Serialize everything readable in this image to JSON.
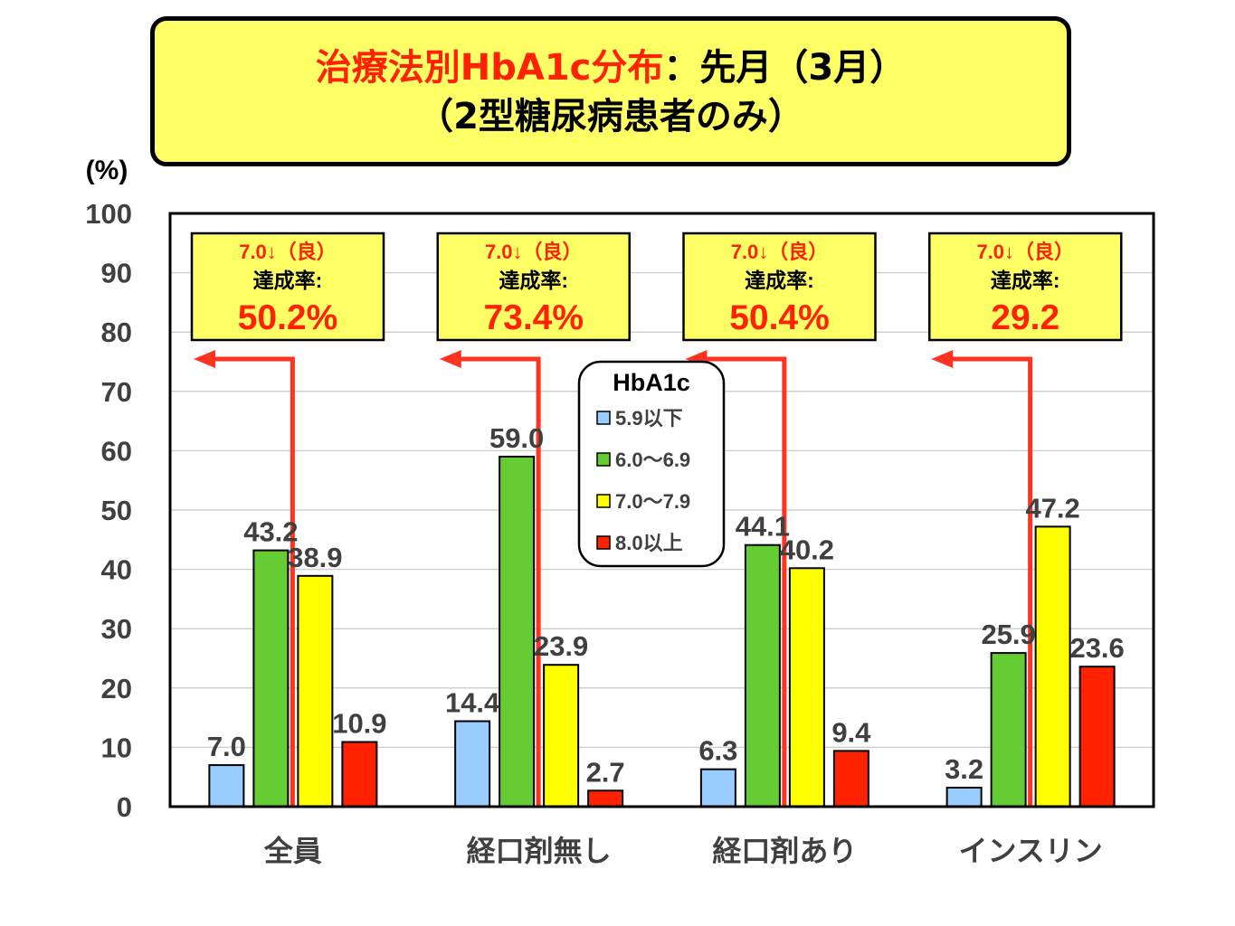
{
  "title": {
    "part1": "治療法別HbA1c分布",
    "part2": "：先月（3月）",
    "line2": "（2型糖尿病患者のみ）"
  },
  "chart_data": {
    "type": "bar",
    "y_unit": "(%)",
    "ylim": [
      0,
      100
    ],
    "yticks": [
      0,
      10,
      20,
      30,
      40,
      50,
      60,
      70,
      80,
      90,
      100
    ],
    "grid": true,
    "categories": [
      "全員",
      "経口剤無し",
      "経口剤あり",
      "インスリン"
    ],
    "series": [
      {
        "name": "5.9以下",
        "color": "#99ccff",
        "values": [
          7.0,
          14.4,
          6.3,
          3.2
        ]
      },
      {
        "name": "6.0〜6.9",
        "color": "#66cc33",
        "values": [
          43.2,
          59.0,
          44.1,
          25.9
        ]
      },
      {
        "name": "7.0〜7.9",
        "color": "#ffff00",
        "values": [
          38.9,
          23.9,
          40.2,
          47.2
        ]
      },
      {
        "name": "8.0以上",
        "color": "#ff2200",
        "values": [
          10.9,
          2.7,
          9.4,
          23.6
        ]
      }
    ],
    "data_labels": [
      [
        "7.0",
        "43.2",
        "38.9",
        "10.9"
      ],
      [
        "14.4",
        "59.0",
        "23.9",
        "2.7"
      ],
      [
        "6.3",
        "44.1",
        "40.2",
        "9.4"
      ],
      [
        "3.2",
        "25.9",
        "47.2",
        "23.6"
      ]
    ],
    "legend": {
      "title": "HbA1c",
      "placement": "top-center"
    },
    "annotations": [
      {
        "line1": "7.0↓（良）",
        "line2": "達成率:",
        "value": "50.2%"
      },
      {
        "line1": "7.0↓（良）",
        "line2": "達成率:",
        "value": "73.4%"
      },
      {
        "line1": "7.0↓（良）",
        "line2": "達成率:",
        "value": "50.4%"
      },
      {
        "line1": "7.0↓（良）",
        "line2": "達成率:",
        "value": "29.2"
      }
    ]
  }
}
